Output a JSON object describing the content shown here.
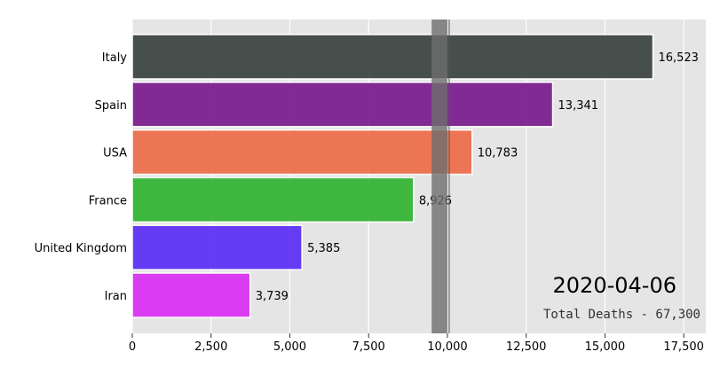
{
  "chart_data": {
    "type": "bar",
    "orientation": "horizontal",
    "categories": [
      "Italy",
      "Spain",
      "USA",
      "France",
      "United Kingdom",
      "Iran"
    ],
    "values": [
      16523,
      13341,
      10783,
      8926,
      5385,
      3739
    ],
    "value_labels": [
      "16,523",
      "13,341",
      "10,783",
      "8,926",
      "5,385",
      "3,739"
    ],
    "bar_colors": [
      "#3a4240",
      "#7a1a8c",
      "#ec6b49",
      "#2fb32f",
      "#5a2cf5",
      "#d92ff2"
    ],
    "xlim": [
      0,
      18200
    ],
    "xticks": [
      0,
      2500,
      5000,
      7500,
      10000,
      12500,
      15000,
      17500
    ],
    "xtick_labels": [
      "0",
      "2,500",
      "5,000",
      "7,500",
      "10,000",
      "12,500",
      "15,000",
      "17,500"
    ],
    "reference_band": {
      "from": 9500,
      "to": 10000,
      "line_at": 10000
    },
    "grid": true,
    "background": "#e5e5e5",
    "title": "",
    "xlabel": "",
    "ylabel": "",
    "date": "2020-04-06",
    "total_text": "Total Deaths - 67,300"
  }
}
